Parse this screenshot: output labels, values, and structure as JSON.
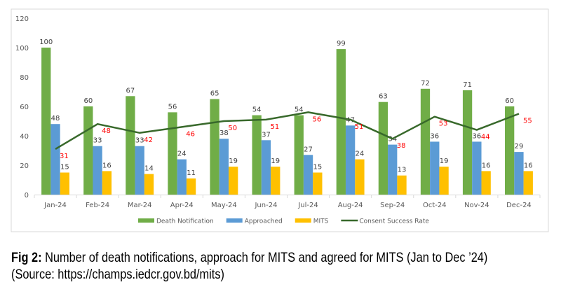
{
  "chart_data": {
    "type": "bar",
    "title": "",
    "xlabel": "",
    "ylabel": "",
    "ylim": [
      0,
      120
    ],
    "yticks": [
      0,
      20,
      40,
      60,
      80,
      100,
      120
    ],
    "grid": false,
    "legend_position": "bottom",
    "categories": [
      "Jan-24",
      "Feb-24",
      "Mar-24",
      "Apr-24",
      "May-24",
      "Jun-24",
      "Jul-24",
      "Aug-24",
      "Sep-24",
      "Oct-24",
      "Nov-24",
      "Dec-24"
    ],
    "series": [
      {
        "name": "Death Notification",
        "kind": "bar",
        "color": "#70ad47",
        "values": [
          100,
          60,
          67,
          56,
          65,
          54,
          54,
          99,
          63,
          72,
          71,
          60
        ]
      },
      {
        "name": "Approached",
        "kind": "bar",
        "color": "#5b9bd5",
        "values": [
          48,
          33,
          33,
          24,
          38,
          37,
          27,
          47,
          34,
          36,
          36,
          29
        ]
      },
      {
        "name": "MITS",
        "kind": "bar",
        "color": "#ffc000",
        "values": [
          15,
          16,
          14,
          11,
          19,
          19,
          15,
          24,
          13,
          19,
          16,
          16
        ]
      },
      {
        "name": "Consent Success Rate",
        "kind": "line",
        "color": "#38692b",
        "label_color": "#ff0000",
        "values": [
          31,
          48,
          42,
          46,
          50,
          51,
          56,
          51,
          38,
          53,
          44,
          55
        ]
      }
    ]
  },
  "caption": {
    "fig_label": "Fig 2:",
    "text": " Number of death notifications, approach for MITS and agreed for MITS (Jan to Dec ’24)",
    "source": "(Source: https://champs.iedcr.gov.bd/mits)"
  }
}
